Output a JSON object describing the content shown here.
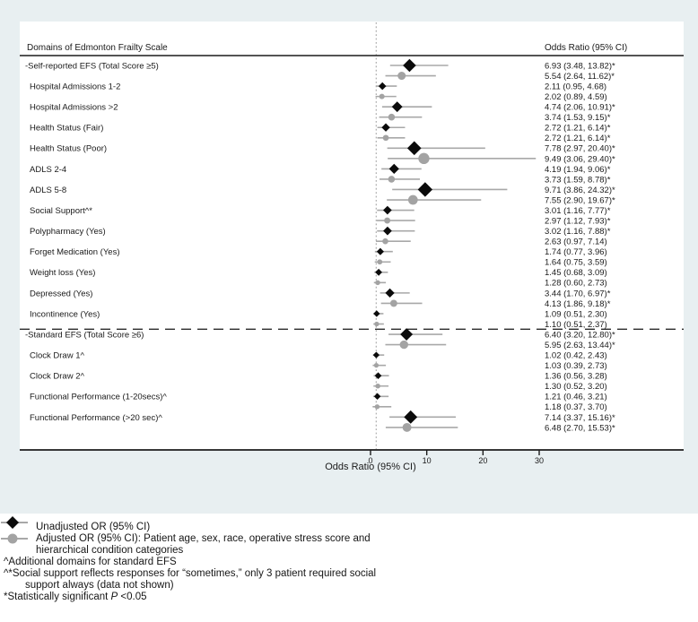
{
  "colors": {
    "background_outer": "#e8eff1",
    "background_panel": "#ffffff",
    "text": "#1a1a1a",
    "axis": "#1c1c1c",
    "ci_line": "#a8a8a8",
    "marker_unadjusted": "#0b0b0b",
    "marker_adjusted": "#a3a3a3",
    "reference_line": "#9b9b9b",
    "separator": "#2b2b2b"
  },
  "figure": {
    "left_header": "Domains of Edmonton Frailty Scale",
    "right_header": "Odds Ratio (95% CI)",
    "axis_title": "Odds Ratio (95% CI)"
  },
  "chart_data": {
    "type": "scatter",
    "subtype": "forest-plot",
    "xlabel": "Odds Ratio (95% CI)",
    "x_ticks": [
      0,
      10,
      20,
      30
    ],
    "x_reference_line": 1,
    "grid": false,
    "series": [
      {
        "name": "Unadjusted OR (95% CI)",
        "marker": "diamond",
        "color": "#0b0b0b"
      },
      {
        "name": "Adjusted OR (95% CI)",
        "marker": "circle",
        "color": "#a3a3a3"
      }
    ],
    "separator_after_row": "Incontinence (Yes)",
    "rows": [
      {
        "label": "-Self-reported EFS (Total Score ≥5)",
        "unadjusted": {
          "or": 6.93,
          "lo": 3.48,
          "hi": 13.82,
          "sig": true
        },
        "adjusted": {
          "or": 5.54,
          "lo": 2.64,
          "hi": 11.62,
          "sig": true
        }
      },
      {
        "label": "Hospital Admissions 1-2",
        "unadjusted": {
          "or": 2.11,
          "lo": 0.95,
          "hi": 4.68,
          "sig": false
        },
        "adjusted": {
          "or": 2.02,
          "lo": 0.89,
          "hi": 4.59,
          "sig": false
        }
      },
      {
        "label": "Hospital Admissions >2",
        "unadjusted": {
          "or": 4.74,
          "lo": 2.06,
          "hi": 10.91,
          "sig": true
        },
        "adjusted": {
          "or": 3.74,
          "lo": 1.53,
          "hi": 9.15,
          "sig": true
        }
      },
      {
        "label": "Health Status (Fair)",
        "unadjusted": {
          "or": 2.72,
          "lo": 1.21,
          "hi": 6.14,
          "sig": true
        },
        "adjusted": {
          "or": 2.72,
          "lo": 1.21,
          "hi": 6.14,
          "sig": true
        }
      },
      {
        "label": "Health Status (Poor)",
        "unadjusted": {
          "or": 7.78,
          "lo": 2.97,
          "hi": 20.4,
          "sig": true
        },
        "adjusted": {
          "or": 9.49,
          "lo": 3.06,
          "hi": 29.4,
          "sig": true
        }
      },
      {
        "label": "ADLS 2-4",
        "unadjusted": {
          "or": 4.19,
          "lo": 1.94,
          "hi": 9.06,
          "sig": true
        },
        "adjusted": {
          "or": 3.73,
          "lo": 1.59,
          "hi": 8.78,
          "sig": true
        }
      },
      {
        "label": "ADLS 5-8",
        "unadjusted": {
          "or": 9.71,
          "lo": 3.86,
          "hi": 24.32,
          "sig": true
        },
        "adjusted": {
          "or": 7.55,
          "lo": 2.9,
          "hi": 19.67,
          "sig": true
        }
      },
      {
        "label": "Social Support^*",
        "unadjusted": {
          "or": 3.01,
          "lo": 1.16,
          "hi": 7.77,
          "sig": true
        },
        "adjusted": {
          "or": 2.97,
          "lo": 1.12,
          "hi": 7.93,
          "sig": true
        }
      },
      {
        "label": "Polypharmacy (Yes)",
        "unadjusted": {
          "or": 3.02,
          "lo": 1.16,
          "hi": 7.88,
          "sig": true
        },
        "adjusted": {
          "or": 2.63,
          "lo": 0.97,
          "hi": 7.14,
          "sig": false
        }
      },
      {
        "label": "Forget Medication (Yes)",
        "unadjusted": {
          "or": 1.74,
          "lo": 0.77,
          "hi": 3.96,
          "sig": false
        },
        "adjusted": {
          "or": 1.64,
          "lo": 0.75,
          "hi": 3.59,
          "sig": false
        }
      },
      {
        "label": "Weight loss (Yes)",
        "unadjusted": {
          "or": 1.45,
          "lo": 0.68,
          "hi": 3.09,
          "sig": false
        },
        "adjusted": {
          "or": 1.28,
          "lo": 0.6,
          "hi": 2.73,
          "sig": false
        }
      },
      {
        "label": "Depressed (Yes)",
        "unadjusted": {
          "or": 3.44,
          "lo": 1.7,
          "hi": 6.97,
          "sig": true
        },
        "adjusted": {
          "or": 4.13,
          "lo": 1.86,
          "hi": 9.18,
          "sig": true
        }
      },
      {
        "label": "Incontinence (Yes)",
        "unadjusted": {
          "or": 1.09,
          "lo": 0.51,
          "hi": 2.3,
          "sig": false
        },
        "adjusted": {
          "or": 1.1,
          "lo": 0.51,
          "hi": 2.37,
          "sig": false
        }
      },
      {
        "label": "-Standard EFS (Total Score ≥6)",
        "unadjusted": {
          "or": 6.4,
          "lo": 3.2,
          "hi": 12.8,
          "sig": true
        },
        "adjusted": {
          "or": 5.95,
          "lo": 2.63,
          "hi": 13.44,
          "sig": true
        }
      },
      {
        "label": "Clock Draw 1^",
        "unadjusted": {
          "or": 1.02,
          "lo": 0.42,
          "hi": 2.43,
          "sig": false
        },
        "adjusted": {
          "or": 1.03,
          "lo": 0.39,
          "hi": 2.73,
          "sig": false
        }
      },
      {
        "label": "Clock Draw 2^",
        "unadjusted": {
          "or": 1.36,
          "lo": 0.56,
          "hi": 3.28,
          "sig": false
        },
        "adjusted": {
          "or": 1.3,
          "lo": 0.52,
          "hi": 3.2,
          "sig": false
        }
      },
      {
        "label": "Functional Performance (1-20secs)^",
        "unadjusted": {
          "or": 1.21,
          "lo": 0.46,
          "hi": 3.21,
          "sig": false
        },
        "adjusted": {
          "or": 1.18,
          "lo": 0.37,
          "hi": 3.7,
          "sig": false
        }
      },
      {
        "label": "Functional Performance (>20 sec)^",
        "unadjusted": {
          "or": 7.14,
          "lo": 3.37,
          "hi": 15.16,
          "sig": true
        },
        "adjusted": {
          "or": 6.48,
          "lo": 2.7,
          "hi": 15.53,
          "sig": true
        }
      }
    ]
  },
  "legend": {
    "unadjusted": "Unadjusted OR (95% CI)",
    "adjusted_line1": "Adjusted OR (95% CI): Patient age, sex, race, operative stress score and",
    "adjusted_line2": "hierarchical condition categories"
  },
  "footnotes": {
    "additional": "^Additional domains for standard EFS",
    "social_line1": "^*Social support reflects responses for “sometimes,” only 3 patient required social",
    "social_line2": "support always (data not shown)",
    "significance_pre": "*Statistically significant ",
    "significance_italic": "P",
    "significance_post": " <0.05"
  }
}
